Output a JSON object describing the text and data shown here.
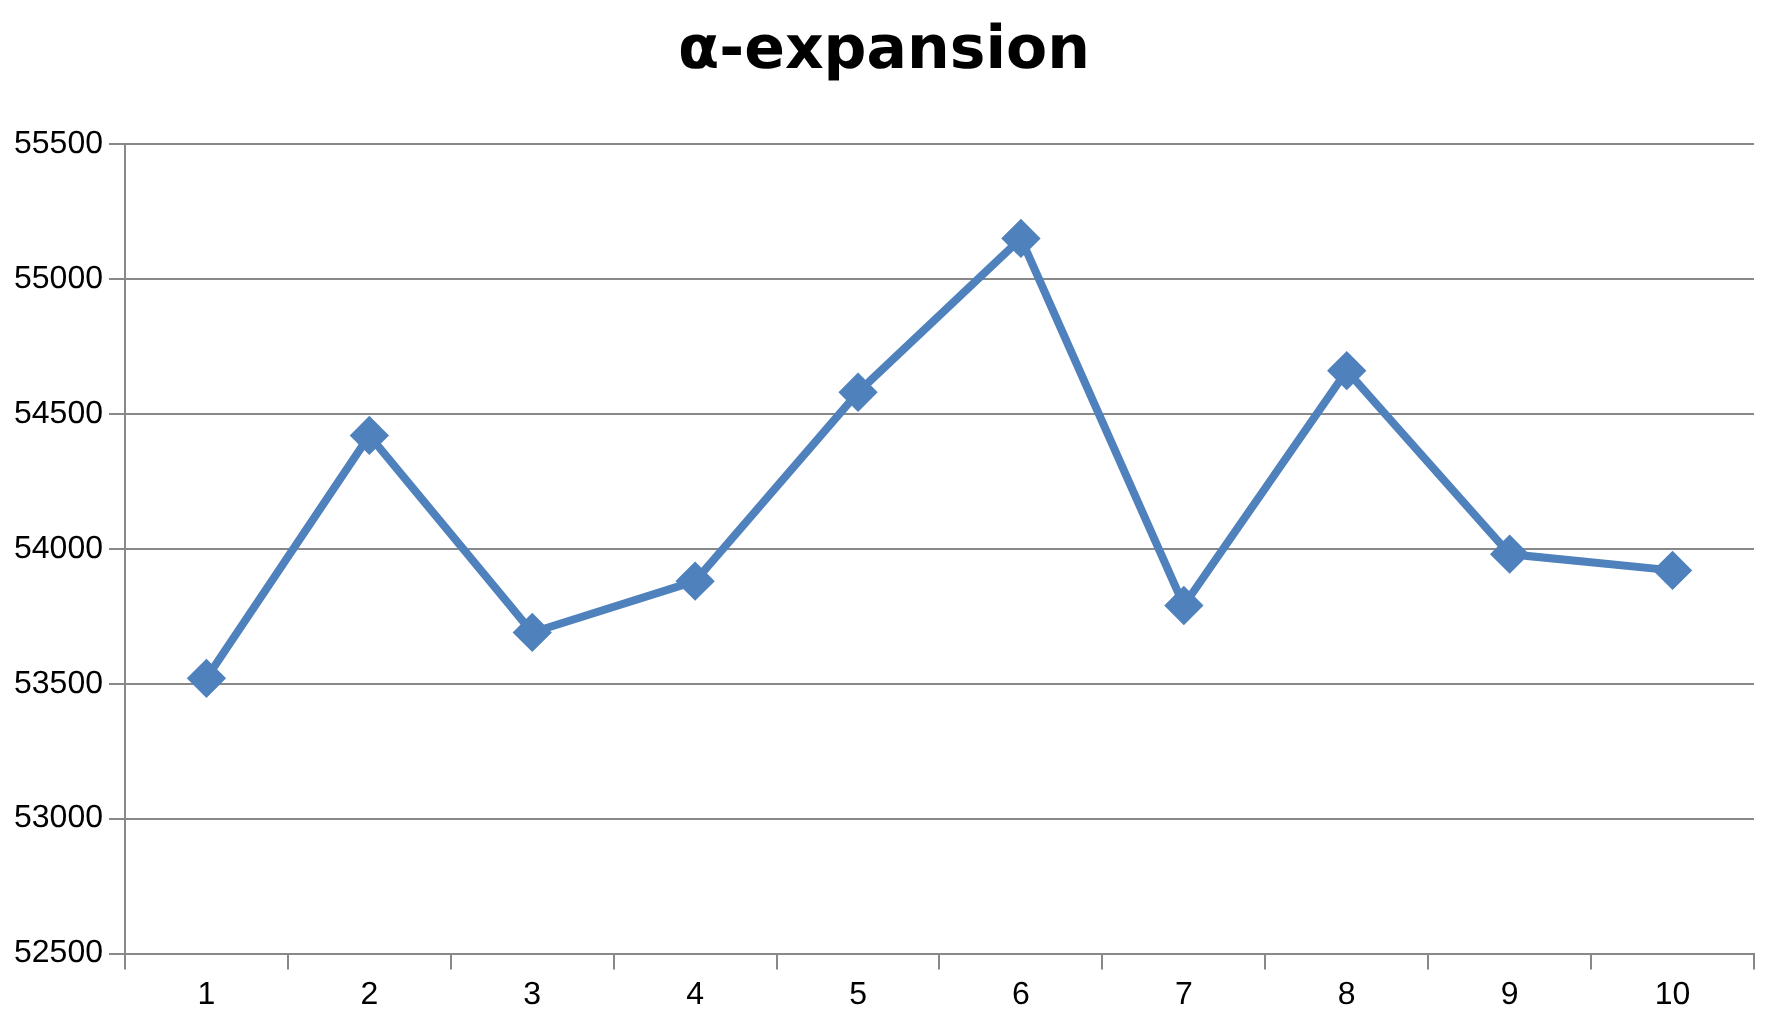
{
  "chart_data": {
    "type": "line",
    "title": "α-expansion",
    "categories": [
      "1",
      "2",
      "3",
      "4",
      "5",
      "6",
      "7",
      "8",
      "9",
      "10"
    ],
    "values": [
      53520,
      54420,
      53690,
      53880,
      54580,
      55150,
      53790,
      54660,
      53980,
      53920
    ],
    "color": "#4f81bd",
    "ylim": [
      52500,
      55500
    ],
    "yticks": [
      52500,
      53000,
      53500,
      54000,
      54500,
      55000,
      55500
    ],
    "grid": "y",
    "marker": "diamond",
    "line_style": "solid",
    "legend": false
  }
}
